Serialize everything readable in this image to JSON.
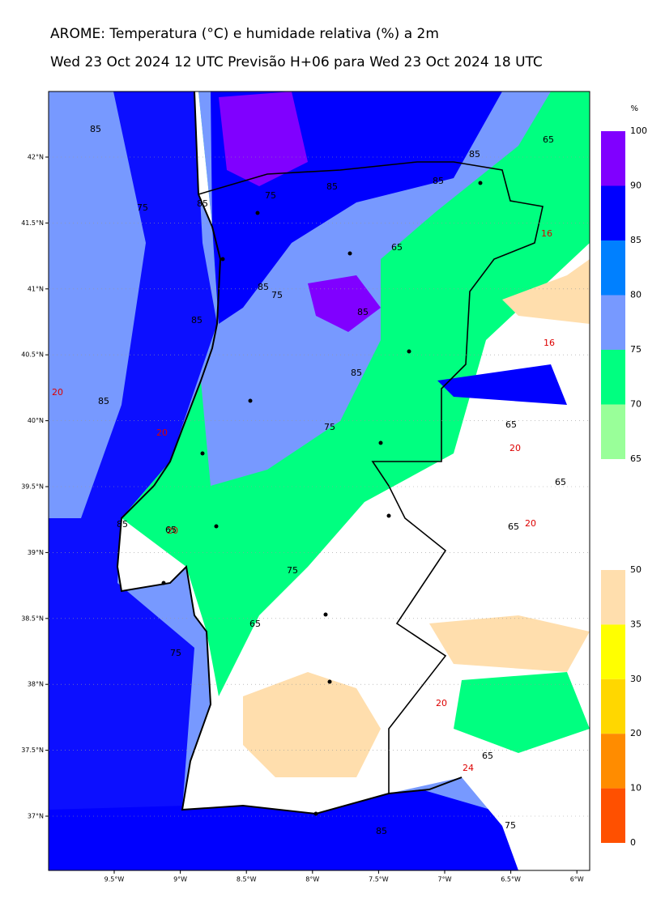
{
  "header": {
    "title": "AROME: Temperatura (°C) e humidade relativa (%) a 2m",
    "subtitle": "Wed 23 Oct 2024 12 UTC Previsão H+06 para Wed 23 Oct 2024 18 UTC"
  },
  "axes": {
    "x_ticks": [
      "9.5°W",
      "9°W",
      "8.5°W",
      "8°W",
      "7.5°W",
      "7°W",
      "6.5°W",
      "6°W"
    ],
    "y_ticks": [
      "42°N",
      "41.5°N",
      "41°N",
      "40.5°N",
      "40°N",
      "39.5°N",
      "39°N",
      "38.5°N",
      "38°N",
      "37.5°N",
      "37°N"
    ]
  },
  "humidity_colorbar": {
    "unit": "%",
    "levels": [
      100,
      90,
      85,
      80,
      75,
      70,
      65
    ],
    "colors": [
      "#8000ff",
      "#0000ff",
      "#0080ff",
      "#7799ff",
      "#00ff80",
      "#99ff99"
    ]
  },
  "temperature_colorbar": {
    "levels": [
      50,
      35,
      30,
      20,
      10,
      0
    ],
    "colors": [
      "#ffdead",
      "#ffff00",
      "#ffd700",
      "#ff8c00",
      "#ff5000"
    ]
  },
  "contour_labels": [
    "85",
    "85",
    "85",
    "85",
    "85",
    "75",
    "75",
    "85",
    "65",
    "65",
    "16",
    "16",
    "85",
    "75",
    "85",
    "85",
    "85",
    "75",
    "65",
    "20",
    "65",
    "20",
    "65",
    "20",
    "75",
    "65",
    "85",
    "75",
    "65",
    "20",
    "24",
    "65",
    "85",
    "75",
    "20",
    "20"
  ]
}
